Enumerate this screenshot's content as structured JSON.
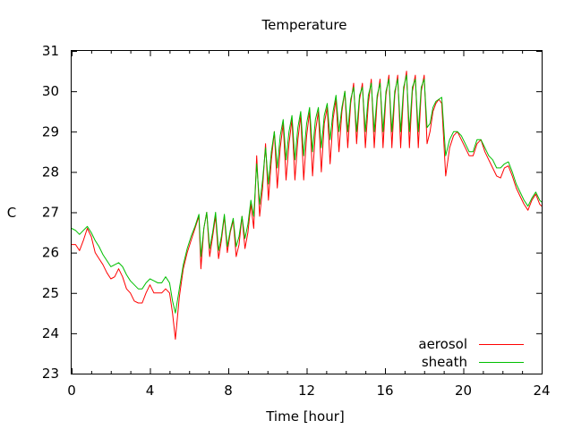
{
  "chart_data": {
    "type": "line",
    "title": "Temperature",
    "xlabel": "Time [hour]",
    "ylabel": "C",
    "xlim": [
      0,
      24
    ],
    "ylim": [
      23,
      31
    ],
    "x_ticks": [
      0,
      4,
      8,
      12,
      16,
      20,
      24
    ],
    "y_ticks": [
      23,
      24,
      25,
      26,
      27,
      28,
      29,
      30,
      31
    ],
    "grid": false,
    "legend_position": "bottom-right",
    "series": [
      {
        "name": "aerosol",
        "color": "#ff0000",
        "x": [
          0,
          0.2,
          0.4,
          0.6,
          0.8,
          1.0,
          1.2,
          1.4,
          1.6,
          1.8,
          2.0,
          2.2,
          2.4,
          2.6,
          2.8,
          3.0,
          3.2,
          3.4,
          3.6,
          3.8,
          4.0,
          4.2,
          4.4,
          4.6,
          4.8,
          5.0,
          5.15,
          5.3,
          5.5,
          5.7,
          5.9,
          6.1,
          6.3,
          6.5,
          6.6,
          6.75,
          6.9,
          7.05,
          7.2,
          7.35,
          7.5,
          7.65,
          7.8,
          7.95,
          8.1,
          8.25,
          8.4,
          8.55,
          8.7,
          8.85,
          9.0,
          9.15,
          9.3,
          9.45,
          9.6,
          9.75,
          9.9,
          10.05,
          10.2,
          10.35,
          10.5,
          10.65,
          10.8,
          10.95,
          11.1,
          11.25,
          11.4,
          11.55,
          11.7,
          11.85,
          12.0,
          12.15,
          12.3,
          12.45,
          12.6,
          12.75,
          12.9,
          13.05,
          13.2,
          13.35,
          13.5,
          13.65,
          13.8,
          13.95,
          14.1,
          14.25,
          14.4,
          14.55,
          14.7,
          14.85,
          15.0,
          15.15,
          15.3,
          15.45,
          15.6,
          15.75,
          15.9,
          16.05,
          16.2,
          16.35,
          16.5,
          16.65,
          16.8,
          16.95,
          17.1,
          17.25,
          17.4,
          17.55,
          17.7,
          17.85,
          18.0,
          18.15,
          18.3,
          18.45,
          18.6,
          18.75,
          18.9,
          19.1,
          19.3,
          19.5,
          19.7,
          19.9,
          20.1,
          20.3,
          20.5,
          20.7,
          20.9,
          21.1,
          21.3,
          21.5,
          21.7,
          21.9,
          22.1,
          22.3,
          22.5,
          22.7,
          22.9,
          23.1,
          23.3,
          23.5,
          23.7,
          23.9,
          24.0
        ],
        "y": [
          26.2,
          26.2,
          26.05,
          26.3,
          26.6,
          26.4,
          26.0,
          25.85,
          25.7,
          25.5,
          25.35,
          25.4,
          25.6,
          25.4,
          25.1,
          25.0,
          24.8,
          24.75,
          24.75,
          25.0,
          25.2,
          25.0,
          25.0,
          25.0,
          25.1,
          25.0,
          24.5,
          23.85,
          24.9,
          25.6,
          26.0,
          26.3,
          26.6,
          26.9,
          25.6,
          26.6,
          27.0,
          25.9,
          26.4,
          26.9,
          25.85,
          26.3,
          26.9,
          26.0,
          26.5,
          26.8,
          25.9,
          26.2,
          26.9,
          26.1,
          26.5,
          27.2,
          26.6,
          28.4,
          26.9,
          27.6,
          28.7,
          27.3,
          28.3,
          29.0,
          27.6,
          28.6,
          29.2,
          27.8,
          28.7,
          29.3,
          27.8,
          28.8,
          29.4,
          27.8,
          28.9,
          29.5,
          27.9,
          29.0,
          29.5,
          28.0,
          29.2,
          29.6,
          28.2,
          29.3,
          29.8,
          28.5,
          29.5,
          30.0,
          28.6,
          29.7,
          30.2,
          28.7,
          29.8,
          30.2,
          28.6,
          29.7,
          30.3,
          28.6,
          29.8,
          30.3,
          28.6,
          29.9,
          30.4,
          28.6,
          29.9,
          30.4,
          28.6,
          30.0,
          30.5,
          28.6,
          30.0,
          30.4,
          28.6,
          30.0,
          30.4,
          28.7,
          29.0,
          29.5,
          29.7,
          29.8,
          29.7,
          27.9,
          28.6,
          28.9,
          29.0,
          28.8,
          28.6,
          28.4,
          28.4,
          28.7,
          28.8,
          28.5,
          28.3,
          28.1,
          27.9,
          27.85,
          28.1,
          28.15,
          27.9,
          27.6,
          27.4,
          27.2,
          27.05,
          27.3,
          27.45,
          27.2,
          27.15
        ]
      },
      {
        "name": "sheath",
        "color": "#00bf00",
        "x": [
          0,
          0.2,
          0.4,
          0.6,
          0.8,
          1.0,
          1.2,
          1.4,
          1.6,
          1.8,
          2.0,
          2.2,
          2.4,
          2.6,
          2.8,
          3.0,
          3.2,
          3.4,
          3.6,
          3.8,
          4.0,
          4.2,
          4.4,
          4.6,
          4.8,
          5.0,
          5.15,
          5.3,
          5.5,
          5.7,
          5.9,
          6.1,
          6.3,
          6.5,
          6.6,
          6.75,
          6.9,
          7.05,
          7.2,
          7.35,
          7.5,
          7.65,
          7.8,
          7.95,
          8.1,
          8.25,
          8.4,
          8.55,
          8.7,
          8.85,
          9.0,
          9.15,
          9.3,
          9.45,
          9.6,
          9.75,
          9.9,
          10.05,
          10.2,
          10.35,
          10.5,
          10.65,
          10.8,
          10.95,
          11.1,
          11.25,
          11.4,
          11.55,
          11.7,
          11.85,
          12.0,
          12.15,
          12.3,
          12.45,
          12.6,
          12.75,
          12.9,
          13.05,
          13.2,
          13.35,
          13.5,
          13.65,
          13.8,
          13.95,
          14.1,
          14.25,
          14.4,
          14.55,
          14.7,
          14.85,
          15.0,
          15.15,
          15.3,
          15.45,
          15.6,
          15.75,
          15.9,
          16.05,
          16.2,
          16.35,
          16.5,
          16.65,
          16.8,
          16.95,
          17.1,
          17.25,
          17.4,
          17.55,
          17.7,
          17.85,
          18.0,
          18.15,
          18.3,
          18.45,
          18.6,
          18.75,
          18.9,
          19.1,
          19.3,
          19.5,
          19.7,
          19.9,
          20.1,
          20.3,
          20.5,
          20.7,
          20.9,
          21.1,
          21.3,
          21.5,
          21.7,
          21.9,
          22.1,
          22.3,
          22.5,
          22.7,
          22.9,
          23.1,
          23.3,
          23.5,
          23.7,
          23.9,
          24.0
        ],
        "y": [
          26.6,
          26.55,
          26.45,
          26.55,
          26.65,
          26.5,
          26.3,
          26.15,
          25.95,
          25.8,
          25.65,
          25.7,
          25.75,
          25.65,
          25.45,
          25.3,
          25.2,
          25.1,
          25.1,
          25.25,
          25.35,
          25.3,
          25.25,
          25.25,
          25.4,
          25.25,
          24.8,
          24.5,
          25.1,
          25.7,
          26.1,
          26.4,
          26.65,
          26.95,
          25.9,
          26.6,
          27.0,
          26.1,
          26.5,
          27.0,
          26.05,
          26.4,
          26.95,
          26.15,
          26.55,
          26.85,
          26.15,
          26.4,
          26.9,
          26.35,
          26.7,
          27.3,
          26.9,
          28.2,
          27.2,
          27.8,
          28.6,
          27.7,
          28.5,
          29.0,
          28.1,
          28.9,
          29.3,
          28.3,
          29.0,
          29.4,
          28.3,
          29.1,
          29.5,
          28.4,
          29.2,
          29.6,
          28.5,
          29.3,
          29.6,
          28.6,
          29.4,
          29.7,
          28.8,
          29.5,
          29.9,
          29.0,
          29.6,
          30.0,
          29.0,
          29.8,
          30.1,
          29.0,
          29.9,
          30.1,
          29.0,
          29.9,
          30.2,
          29.0,
          29.9,
          30.2,
          29.0,
          30.0,
          30.3,
          29.0,
          30.0,
          30.3,
          29.0,
          30.1,
          30.4,
          29.0,
          30.1,
          30.3,
          29.0,
          30.1,
          30.3,
          29.1,
          29.2,
          29.6,
          29.75,
          29.8,
          29.85,
          28.4,
          28.8,
          29.0,
          29.0,
          28.9,
          28.7,
          28.5,
          28.5,
          28.8,
          28.8,
          28.6,
          28.4,
          28.3,
          28.1,
          28.1,
          28.2,
          28.25,
          28.0,
          27.7,
          27.5,
          27.3,
          27.15,
          27.35,
          27.5,
          27.3,
          27.25
        ]
      }
    ]
  }
}
